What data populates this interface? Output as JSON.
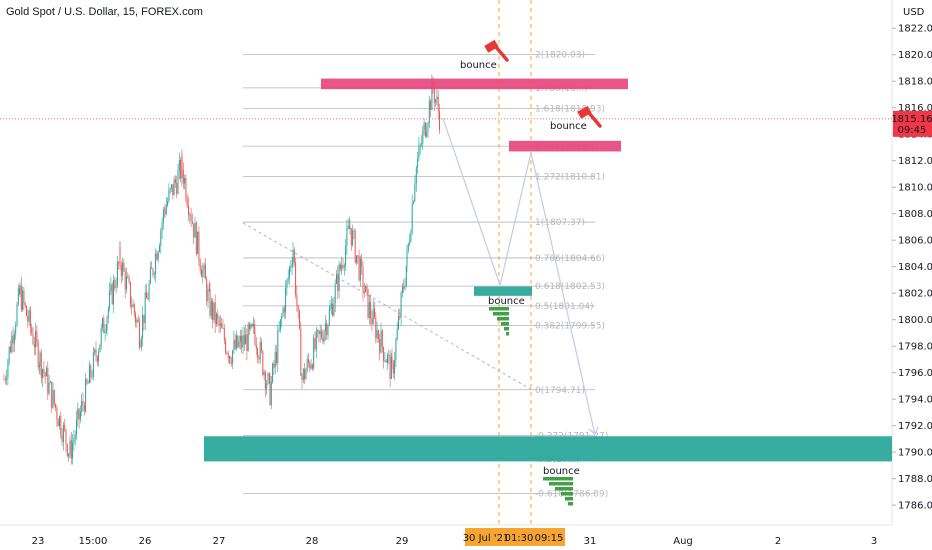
{
  "title": "Gold Spot / U.S. Dollar, 15, FOREX.com",
  "currency": "USD",
  "price_tag": {
    "price": "1815.16",
    "timer": "09:45",
    "color": "#f23645"
  },
  "colors": {
    "up": "#26a69a",
    "down": "#ef5350",
    "resistance": "#e8477e",
    "support": "#26a69a",
    "arrow": "#c5cae9",
    "vline": "#f7a432",
    "fibline": "#b2b5be",
    "bar_green": "#43a047",
    "hammer": "#e53935"
  },
  "chart_data": {
    "type": "candlestick",
    "title": "Gold Spot / U.S. Dollar, 15, FOREX.com",
    "ylim": [
      1784.5,
      1823
    ],
    "yticks": [
      1786,
      1788,
      1790,
      1792,
      1794,
      1796,
      1798,
      1800,
      1802,
      1804,
      1806,
      1808,
      1810,
      1812,
      1814,
      1816,
      1818,
      1820,
      1822
    ],
    "xticks": [
      "23",
      "15:00",
      "26",
      "27",
      "28",
      "29",
      "31",
      "Aug",
      "2",
      "3"
    ],
    "x_highlight_labels": [
      "30 Jul '21",
      "01:30",
      "09:15"
    ],
    "current_price": 1815.16,
    "price_path": [
      [
        "23",
        1795.5
      ],
      [
        "23",
        1802.0
      ],
      [
        "15:00",
        1797.0
      ],
      [
        "15:00",
        1790.0
      ],
      [
        "15:00",
        1800.5
      ],
      [
        "26",
        1804.5
      ],
      [
        "26",
        1799.0
      ],
      [
        "26",
        1808.5
      ],
      [
        "26",
        1811.5
      ],
      [
        "26",
        1806.5
      ],
      [
        "27",
        1801.0
      ],
      [
        "27",
        1797.5
      ],
      [
        "27",
        1799.0
      ],
      [
        "27",
        1794.5
      ],
      [
        "28",
        1805.5
      ],
      [
        "28",
        1795.5
      ],
      [
        "28",
        1800.5
      ],
      [
        "28",
        1807.0
      ],
      [
        "28",
        1801.0
      ],
      [
        "29",
        1796.0
      ],
      [
        "29",
        1804.5
      ],
      [
        "29",
        1811.0
      ],
      [
        "29",
        1817.5
      ],
      [
        "29",
        1815.2
      ]
    ],
    "fibonacci": [
      {
        "label": "2(1820.03)",
        "value": 1820.03
      },
      {
        "label": "1.786(18...)",
        "value": 1817.5
      },
      {
        "label": "1.618(1815.93)",
        "value": 1815.93
      },
      {
        "label": "1.414(1813.1)",
        "value": 1813.1
      },
      {
        "label": "1.272(1810.81)",
        "value": 1810.81
      },
      {
        "label": "1(1807.37)",
        "value": 1807.37
      },
      {
        "label": "0.786(1804.66)",
        "value": 1804.66
      },
      {
        "label": "0.618(1802.53)",
        "value": 1802.53
      },
      {
        "label": "0.5(1801.04)",
        "value": 1801.04
      },
      {
        "label": "0.382(1799.55)",
        "value": 1799.55
      },
      {
        "label": "0(1794.71)",
        "value": 1794.71
      },
      {
        "label": "-0.272(1791.27)",
        "value": 1791.27
      },
      {
        "label": "-0.5(17...)",
        "value": 1789.5
      },
      {
        "label": "-0.618(1786.89)",
        "value": 1786.89
      }
    ],
    "zones": [
      {
        "name": "resistance-upper",
        "top": 1818.2,
        "bottom": 1817.4
      },
      {
        "name": "resistance-lower",
        "top": 1813.5,
        "bottom": 1812.7
      },
      {
        "name": "support-middle",
        "top": 1802.5,
        "bottom": 1801.8
      },
      {
        "name": "support-lower",
        "top": 1791.2,
        "bottom": 1789.3
      }
    ],
    "annotations": [
      "bounce",
      "bounce",
      "bounce",
      "bounce"
    ]
  }
}
